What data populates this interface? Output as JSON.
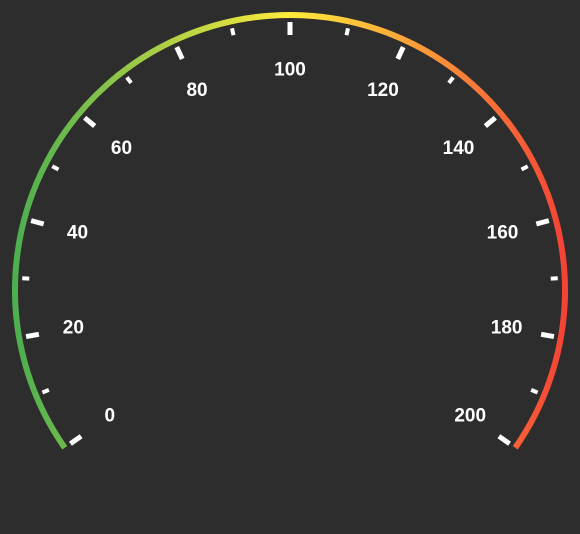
{
  "gauge": {
    "min": 0,
    "max": 200,
    "major_step": 20,
    "minor_step": 10,
    "labels": [
      "0",
      "20",
      "40",
      "60",
      "80",
      "100",
      "120",
      "140",
      "160",
      "180",
      "200"
    ],
    "colors": {
      "background": "#2e2d2d",
      "gradient_start": "#4caf50",
      "gradient_mid": "#ffeb3b",
      "gradient_end": "#f44336",
      "ticks": "#ffffff",
      "labels": "#ffffff"
    }
  }
}
